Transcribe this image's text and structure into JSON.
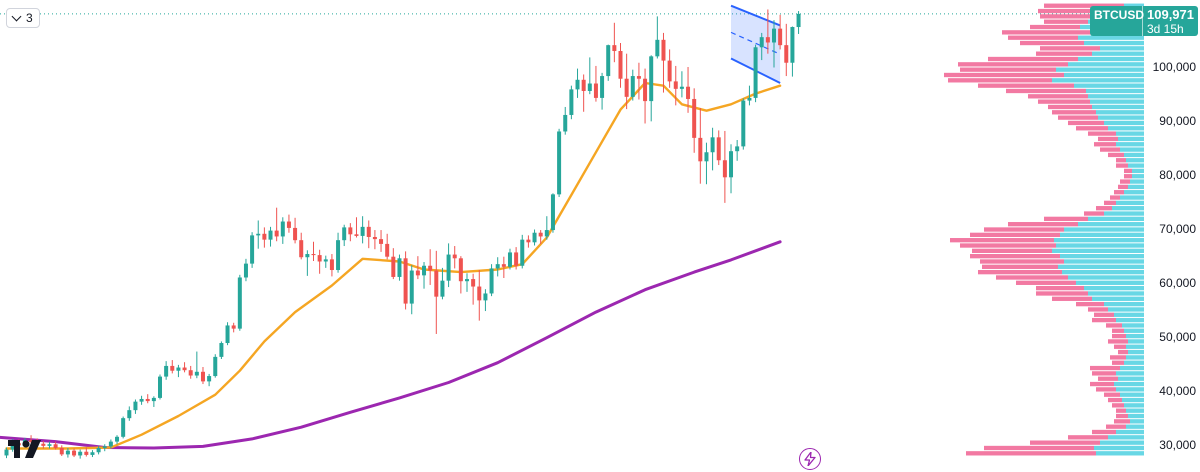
{
  "toolbar": {
    "layers_count": "3"
  },
  "price_tag": {
    "symbol": "BTCUSD",
    "price": "109,971",
    "countdown": "3d 15h",
    "color": "#26a69a"
  },
  "icons": {
    "logo": "tradingview-logo",
    "bolt": "lightning-bolt-icon",
    "chevron": "chevron-down-icon"
  },
  "colors": {
    "up": "#26a69a",
    "down": "#ef5350",
    "ma_fast": "#f5a623",
    "ma_slow": "#9c27b0",
    "channel": "#2962ff",
    "vp_up": "#4dd0e1",
    "vp_down": "#f06292"
  },
  "chart_data": {
    "type": "candlestick",
    "symbol": "BTCUSD",
    "last_price": 109971,
    "ylim": [
      26000,
      117000
    ],
    "y_ticks": [
      "100,000",
      "90,000",
      "80,000",
      "70,000",
      "60,000",
      "50,000",
      "40,000",
      "30,000"
    ],
    "y_tick_values": [
      100000,
      90000,
      80000,
      70000,
      60000,
      50000,
      40000,
      30000
    ],
    "candles": [
      [
        27100,
        28600,
        26600,
        28200
      ],
      [
        28200,
        30200,
        27800,
        29400
      ],
      [
        29400,
        30100,
        28500,
        29000
      ],
      [
        29000,
        30400,
        28600,
        30000
      ],
      [
        30000,
        30900,
        29400,
        29600
      ],
      [
        29600,
        30300,
        28900,
        29300
      ],
      [
        29300,
        29800,
        28400,
        28900
      ],
      [
        28900,
        29700,
        28400,
        29200
      ],
      [
        29200,
        29700,
        28200,
        28500
      ],
      [
        28500,
        29000,
        27000,
        27300
      ],
      [
        27300,
        28500,
        26700,
        28000
      ],
      [
        28000,
        28400,
        26800,
        27100
      ],
      [
        27100,
        28200,
        26500,
        27800
      ],
      [
        27800,
        28600,
        26900,
        27200
      ],
      [
        27200,
        28100,
        26800,
        27700
      ],
      [
        27700,
        28900,
        27300,
        28500
      ],
      [
        28500,
        29200,
        27900,
        28800
      ],
      [
        28800,
        30100,
        28400,
        29700
      ],
      [
        29700,
        30900,
        29200,
        30600
      ],
      [
        30600,
        34400,
        30300,
        34100
      ],
      [
        34100,
        36300,
        33600,
        35600
      ],
      [
        35600,
        37600,
        34900,
        37200
      ],
      [
        37200,
        38300,
        36600,
        37700
      ],
      [
        37700,
        38600,
        36900,
        37300
      ],
      [
        37300,
        38200,
        36200,
        37900
      ],
      [
        37900,
        42300,
        37600,
        41900
      ],
      [
        41900,
        44800,
        41300,
        43900
      ],
      [
        43900,
        45000,
        42500,
        43000
      ],
      [
        43000,
        44100,
        41800,
        43600
      ],
      [
        43600,
        44600,
        42700,
        43100
      ],
      [
        43100,
        43900,
        41500,
        42100
      ],
      [
        42100,
        46600,
        41600,
        42800
      ],
      [
        42800,
        43700,
        40500,
        41000
      ],
      [
        41000,
        42400,
        40100,
        42000
      ],
      [
        42000,
        46100,
        41700,
        45600
      ],
      [
        45600,
        48500,
        45200,
        48200
      ],
      [
        48200,
        52100,
        47800,
        51500
      ],
      [
        51500,
        52000,
        50200,
        50900
      ],
      [
        50900,
        61000,
        50500,
        60500
      ],
      [
        60500,
        64000,
        59800,
        63100
      ],
      [
        63100,
        69000,
        62300,
        68400
      ],
      [
        68400,
        71200,
        65900,
        68700
      ],
      [
        68700,
        69900,
        66100,
        67600
      ],
      [
        67600,
        70000,
        66300,
        69300
      ],
      [
        69300,
        73600,
        67300,
        68200
      ],
      [
        68200,
        71800,
        66800,
        71000
      ],
      [
        71000,
        72300,
        68900,
        69800
      ],
      [
        69800,
        71700,
        66900,
        67500
      ],
      [
        67500,
        68900,
        63900,
        64300
      ],
      [
        64300,
        65600,
        60800,
        64900
      ],
      [
        64900,
        67200,
        63600,
        64700
      ],
      [
        64700,
        65700,
        61200,
        63500
      ],
      [
        63500,
        64600,
        62300,
        63900
      ],
      [
        63900,
        64900,
        60700,
        61900
      ],
      [
        61900,
        68900,
        61400,
        67500
      ],
      [
        67500,
        70400,
        66400,
        69900
      ],
      [
        69900,
        70700,
        67300,
        68600
      ],
      [
        68600,
        71800,
        68000,
        68300
      ],
      [
        68300,
        72000,
        66900,
        70000
      ],
      [
        70000,
        71200,
        66000,
        68100
      ],
      [
        68100,
        69400,
        65800,
        67700
      ],
      [
        67700,
        69400,
        65300,
        66800
      ],
      [
        66800,
        68700,
        63900,
        64400
      ],
      [
        64400,
        66000,
        60200,
        60600
      ],
      [
        60600,
        64800,
        59900,
        64100
      ],
      [
        64100,
        65400,
        54500,
        55600
      ],
      [
        55600,
        62800,
        53600,
        61800
      ],
      [
        61800,
        64500,
        60200,
        60900
      ],
      [
        60900,
        63400,
        58400,
        62700
      ],
      [
        62700,
        65800,
        59100,
        61800
      ],
      [
        61800,
        65500,
        49900,
        56900
      ],
      [
        56900,
        62300,
        56400,
        59900
      ],
      [
        59900,
        66900,
        58700,
        64800
      ],
      [
        64800,
        66400,
        62200,
        64100
      ],
      [
        64100,
        64500,
        57500,
        59800
      ],
      [
        59800,
        61300,
        57800,
        60200
      ],
      [
        60200,
        61200,
        55400,
        58800
      ],
      [
        58800,
        61900,
        52400,
        56200
      ],
      [
        56200,
        58300,
        54200,
        57500
      ],
      [
        57500,
        63000,
        57000,
        62200
      ],
      [
        62200,
        64300,
        60700,
        63000
      ],
      [
        63000,
        64400,
        60400,
        62500
      ],
      [
        62500,
        65900,
        62000,
        65200
      ],
      [
        65200,
        66200,
        62000,
        62700
      ],
      [
        62700,
        68500,
        62200,
        67600
      ],
      [
        67600,
        68400,
        66100,
        67100
      ],
      [
        67100,
        69500,
        66500,
        68900
      ],
      [
        68900,
        69400,
        66800,
        68200
      ],
      [
        68200,
        72000,
        67600,
        69400
      ],
      [
        69400,
        76300,
        68900,
        76100
      ],
      [
        76100,
        88400,
        75600,
        87900
      ],
      [
        87900,
        92500,
        87300,
        91000
      ],
      [
        91000,
        96500,
        90200,
        95800
      ],
      [
        95800,
        99700,
        94200,
        97600
      ],
      [
        97600,
        98600,
        91600,
        95500
      ],
      [
        95500,
        101800,
        94900,
        96900
      ],
      [
        96900,
        100200,
        93500,
        94200
      ],
      [
        94200,
        98900,
        92000,
        98300
      ],
      [
        98300,
        104200,
        97400,
        104100
      ],
      [
        104100,
        108300,
        100900,
        103000
      ],
      [
        103000,
        104500,
        96100,
        97800
      ],
      [
        97800,
        102500,
        92100,
        94400
      ],
      [
        94400,
        99500,
        93700,
        98300
      ],
      [
        98300,
        100800,
        93900,
        97800
      ],
      [
        97800,
        99700,
        89400,
        93600
      ],
      [
        93600,
        102200,
        89800,
        102000
      ],
      [
        102000,
        109500,
        101600,
        105100
      ],
      [
        105100,
        106400,
        95200,
        101200
      ],
      [
        101200,
        103300,
        96100,
        97300
      ],
      [
        97300,
        100200,
        92800,
        95900
      ],
      [
        95900,
        99200,
        94300,
        96300
      ],
      [
        96300,
        100000,
        91400,
        94000
      ],
      [
        94000,
        96000,
        83900,
        86700
      ],
      [
        86700,
        92300,
        78100,
        82300
      ],
      [
        82300,
        85800,
        78000,
        84000
      ],
      [
        84000,
        88600,
        80600,
        86800
      ],
      [
        86800,
        88100,
        81600,
        82500
      ],
      [
        82500,
        88000,
        74500,
        79300
      ],
      [
        79300,
        85500,
        76300,
        84200
      ],
      [
        84200,
        86300,
        82400,
        85100
      ],
      [
        85100,
        94100,
        84500,
        93700
      ],
      [
        93700,
        96500,
        92800,
        94200
      ],
      [
        94200,
        104200,
        93400,
        103700
      ],
      [
        103700,
        106400,
        101300,
        105600
      ],
      [
        105600,
        110800,
        102500,
        104600
      ],
      [
        104600,
        108800,
        99900,
        107200
      ],
      [
        107200,
        109800,
        103300,
        104100
      ],
      [
        104100,
        108100,
        98300,
        100800
      ],
      [
        100800,
        107600,
        98200,
        107500
      ],
      [
        107500,
        110500,
        106200,
        109971
      ]
    ],
    "ma_fast": {
      "color": "#f5a623",
      "points": [
        [
          0,
          28400
        ],
        [
          10,
          28400
        ],
        [
          17,
          28600
        ],
        [
          22,
          31000
        ],
        [
          28,
          34500
        ],
        [
          34,
          38500
        ],
        [
          38,
          43000
        ],
        [
          42,
          48500
        ],
        [
          47,
          54000
        ],
        [
          53,
          59000
        ],
        [
          58,
          64000
        ],
        [
          64,
          63500
        ],
        [
          68,
          62000
        ],
        [
          74,
          61500
        ],
        [
          80,
          62000
        ],
        [
          84,
          63000
        ],
        [
          88,
          68000
        ],
        [
          92,
          76000
        ],
        [
          96,
          84000
        ],
        [
          100,
          92000
        ],
        [
          104,
          97000
        ],
        [
          107,
          96500
        ],
        [
          110,
          93000
        ],
        [
          114,
          91800
        ],
        [
          118,
          93000
        ],
        [
          122,
          95000
        ],
        [
          126,
          96500
        ]
      ]
    },
    "ma_slow": {
      "color": "#9c27b0",
      "points": [
        [
          -20,
          31800
        ],
        [
          -10,
          31300
        ],
        [
          0,
          30400
        ],
        [
          8,
          29700
        ],
        [
          16,
          28600
        ],
        [
          24,
          28500
        ],
        [
          32,
          28800
        ],
        [
          40,
          30200
        ],
        [
          48,
          32400
        ],
        [
          56,
          35200
        ],
        [
          64,
          37900
        ],
        [
          72,
          40800
        ],
        [
          80,
          44500
        ],
        [
          88,
          49200
        ],
        [
          96,
          54000
        ],
        [
          104,
          58200
        ],
        [
          112,
          61500
        ],
        [
          118,
          63800
        ],
        [
          126,
          67200
        ]
      ]
    },
    "channel": {
      "color": "#2962ff",
      "upper": [
        [
          118,
          111500
        ],
        [
          126,
          107800
        ]
      ],
      "lower": [
        [
          118,
          101600
        ],
        [
          126,
          97000
        ]
      ],
      "mid": [
        [
          118,
          106500
        ],
        [
          126,
          102400
        ]
      ]
    },
    "volume_profile": {
      "bin_size": 1000,
      "bins": [
        [
          111500,
          0.1,
          0.4
        ],
        [
          110500,
          0.18,
          0.35
        ],
        [
          109500,
          0.22,
          0.3
        ],
        [
          108500,
          0.28,
          0.22
        ],
        [
          107500,
          0.32,
          0.25
        ],
        [
          106500,
          0.26,
          0.45
        ],
        [
          105500,
          0.33,
          0.35
        ],
        [
          104500,
          0.3,
          0.32
        ],
        [
          103500,
          0.22,
          0.3
        ],
        [
          102500,
          0.26,
          0.28
        ],
        [
          101500,
          0.33,
          0.45
        ],
        [
          100500,
          0.38,
          0.55
        ],
        [
          99500,
          0.44,
          0.48
        ],
        [
          98500,
          0.4,
          0.6
        ],
        [
          97500,
          0.46,
          0.52
        ],
        [
          96500,
          0.35,
          0.48
        ],
        [
          95500,
          0.29,
          0.4
        ],
        [
          94500,
          0.28,
          0.3
        ],
        [
          93500,
          0.27,
          0.26
        ],
        [
          92500,
          0.26,
          0.22
        ],
        [
          91500,
          0.24,
          0.22
        ],
        [
          90500,
          0.23,
          0.2
        ],
        [
          89500,
          0.2,
          0.18
        ],
        [
          88500,
          0.18,
          0.16
        ],
        [
          87500,
          0.14,
          0.14
        ],
        [
          86500,
          0.13,
          0.1
        ],
        [
          85500,
          0.14,
          0.11
        ],
        [
          84500,
          0.12,
          0.1
        ],
        [
          83500,
          0.1,
          0.08
        ],
        [
          82500,
          0.09,
          0.05
        ],
        [
          81500,
          0.08,
          0.06
        ],
        [
          80500,
          0.06,
          0.04
        ],
        [
          79500,
          0.06,
          0.04
        ],
        [
          78500,
          0.07,
          0.05
        ],
        [
          77500,
          0.08,
          0.05
        ],
        [
          76500,
          0.1,
          0.05
        ],
        [
          75500,
          0.12,
          0.05
        ],
        [
          74500,
          0.14,
          0.06
        ],
        [
          73500,
          0.16,
          0.08
        ],
        [
          72500,
          0.2,
          0.1
        ],
        [
          71500,
          0.28,
          0.22
        ],
        [
          70500,
          0.33,
          0.35
        ],
        [
          69500,
          0.4,
          0.4
        ],
        [
          68500,
          0.42,
          0.45
        ],
        [
          67500,
          0.45,
          0.52
        ],
        [
          66500,
          0.44,
          0.48
        ],
        [
          65500,
          0.46,
          0.4
        ],
        [
          64500,
          0.42,
          0.45
        ],
        [
          63500,
          0.4,
          0.42
        ],
        [
          62500,
          0.43,
          0.38
        ],
        [
          61500,
          0.41,
          0.42
        ],
        [
          60500,
          0.38,
          0.36
        ],
        [
          59500,
          0.34,
          0.3
        ],
        [
          58500,
          0.3,
          0.24
        ],
        [
          57500,
          0.28,
          0.26
        ],
        [
          56500,
          0.26,
          0.2
        ],
        [
          55500,
          0.2,
          0.14
        ],
        [
          54500,
          0.18,
          0.1
        ],
        [
          53500,
          0.15,
          0.1
        ],
        [
          52500,
          0.14,
          0.12
        ],
        [
          51500,
          0.11,
          0.08
        ],
        [
          50500,
          0.1,
          0.06
        ],
        [
          49500,
          0.09,
          0.07
        ],
        [
          48500,
          0.08,
          0.1
        ],
        [
          47500,
          0.09,
          0.06
        ],
        [
          46500,
          0.08,
          0.05
        ],
        [
          45500,
          0.09,
          0.08
        ],
        [
          44500,
          0.1,
          0.06
        ],
        [
          43500,
          0.12,
          0.15
        ],
        [
          42500,
          0.14,
          0.12
        ],
        [
          41500,
          0.13,
          0.1
        ],
        [
          40500,
          0.15,
          0.12
        ],
        [
          39500,
          0.14,
          0.1
        ],
        [
          38500,
          0.12,
          0.08
        ],
        [
          37500,
          0.11,
          0.07
        ],
        [
          36500,
          0.1,
          0.06
        ],
        [
          35500,
          0.09,
          0.05
        ],
        [
          34500,
          0.08,
          0.06
        ],
        [
          33500,
          0.07,
          0.08
        ],
        [
          32500,
          0.09,
          0.1
        ],
        [
          31500,
          0.14,
          0.12
        ],
        [
          30500,
          0.18,
          0.2
        ],
        [
          29500,
          0.22,
          0.35
        ],
        [
          28500,
          0.25,
          0.55
        ],
        [
          27500,
          0.24,
          0.65
        ]
      ]
    }
  }
}
